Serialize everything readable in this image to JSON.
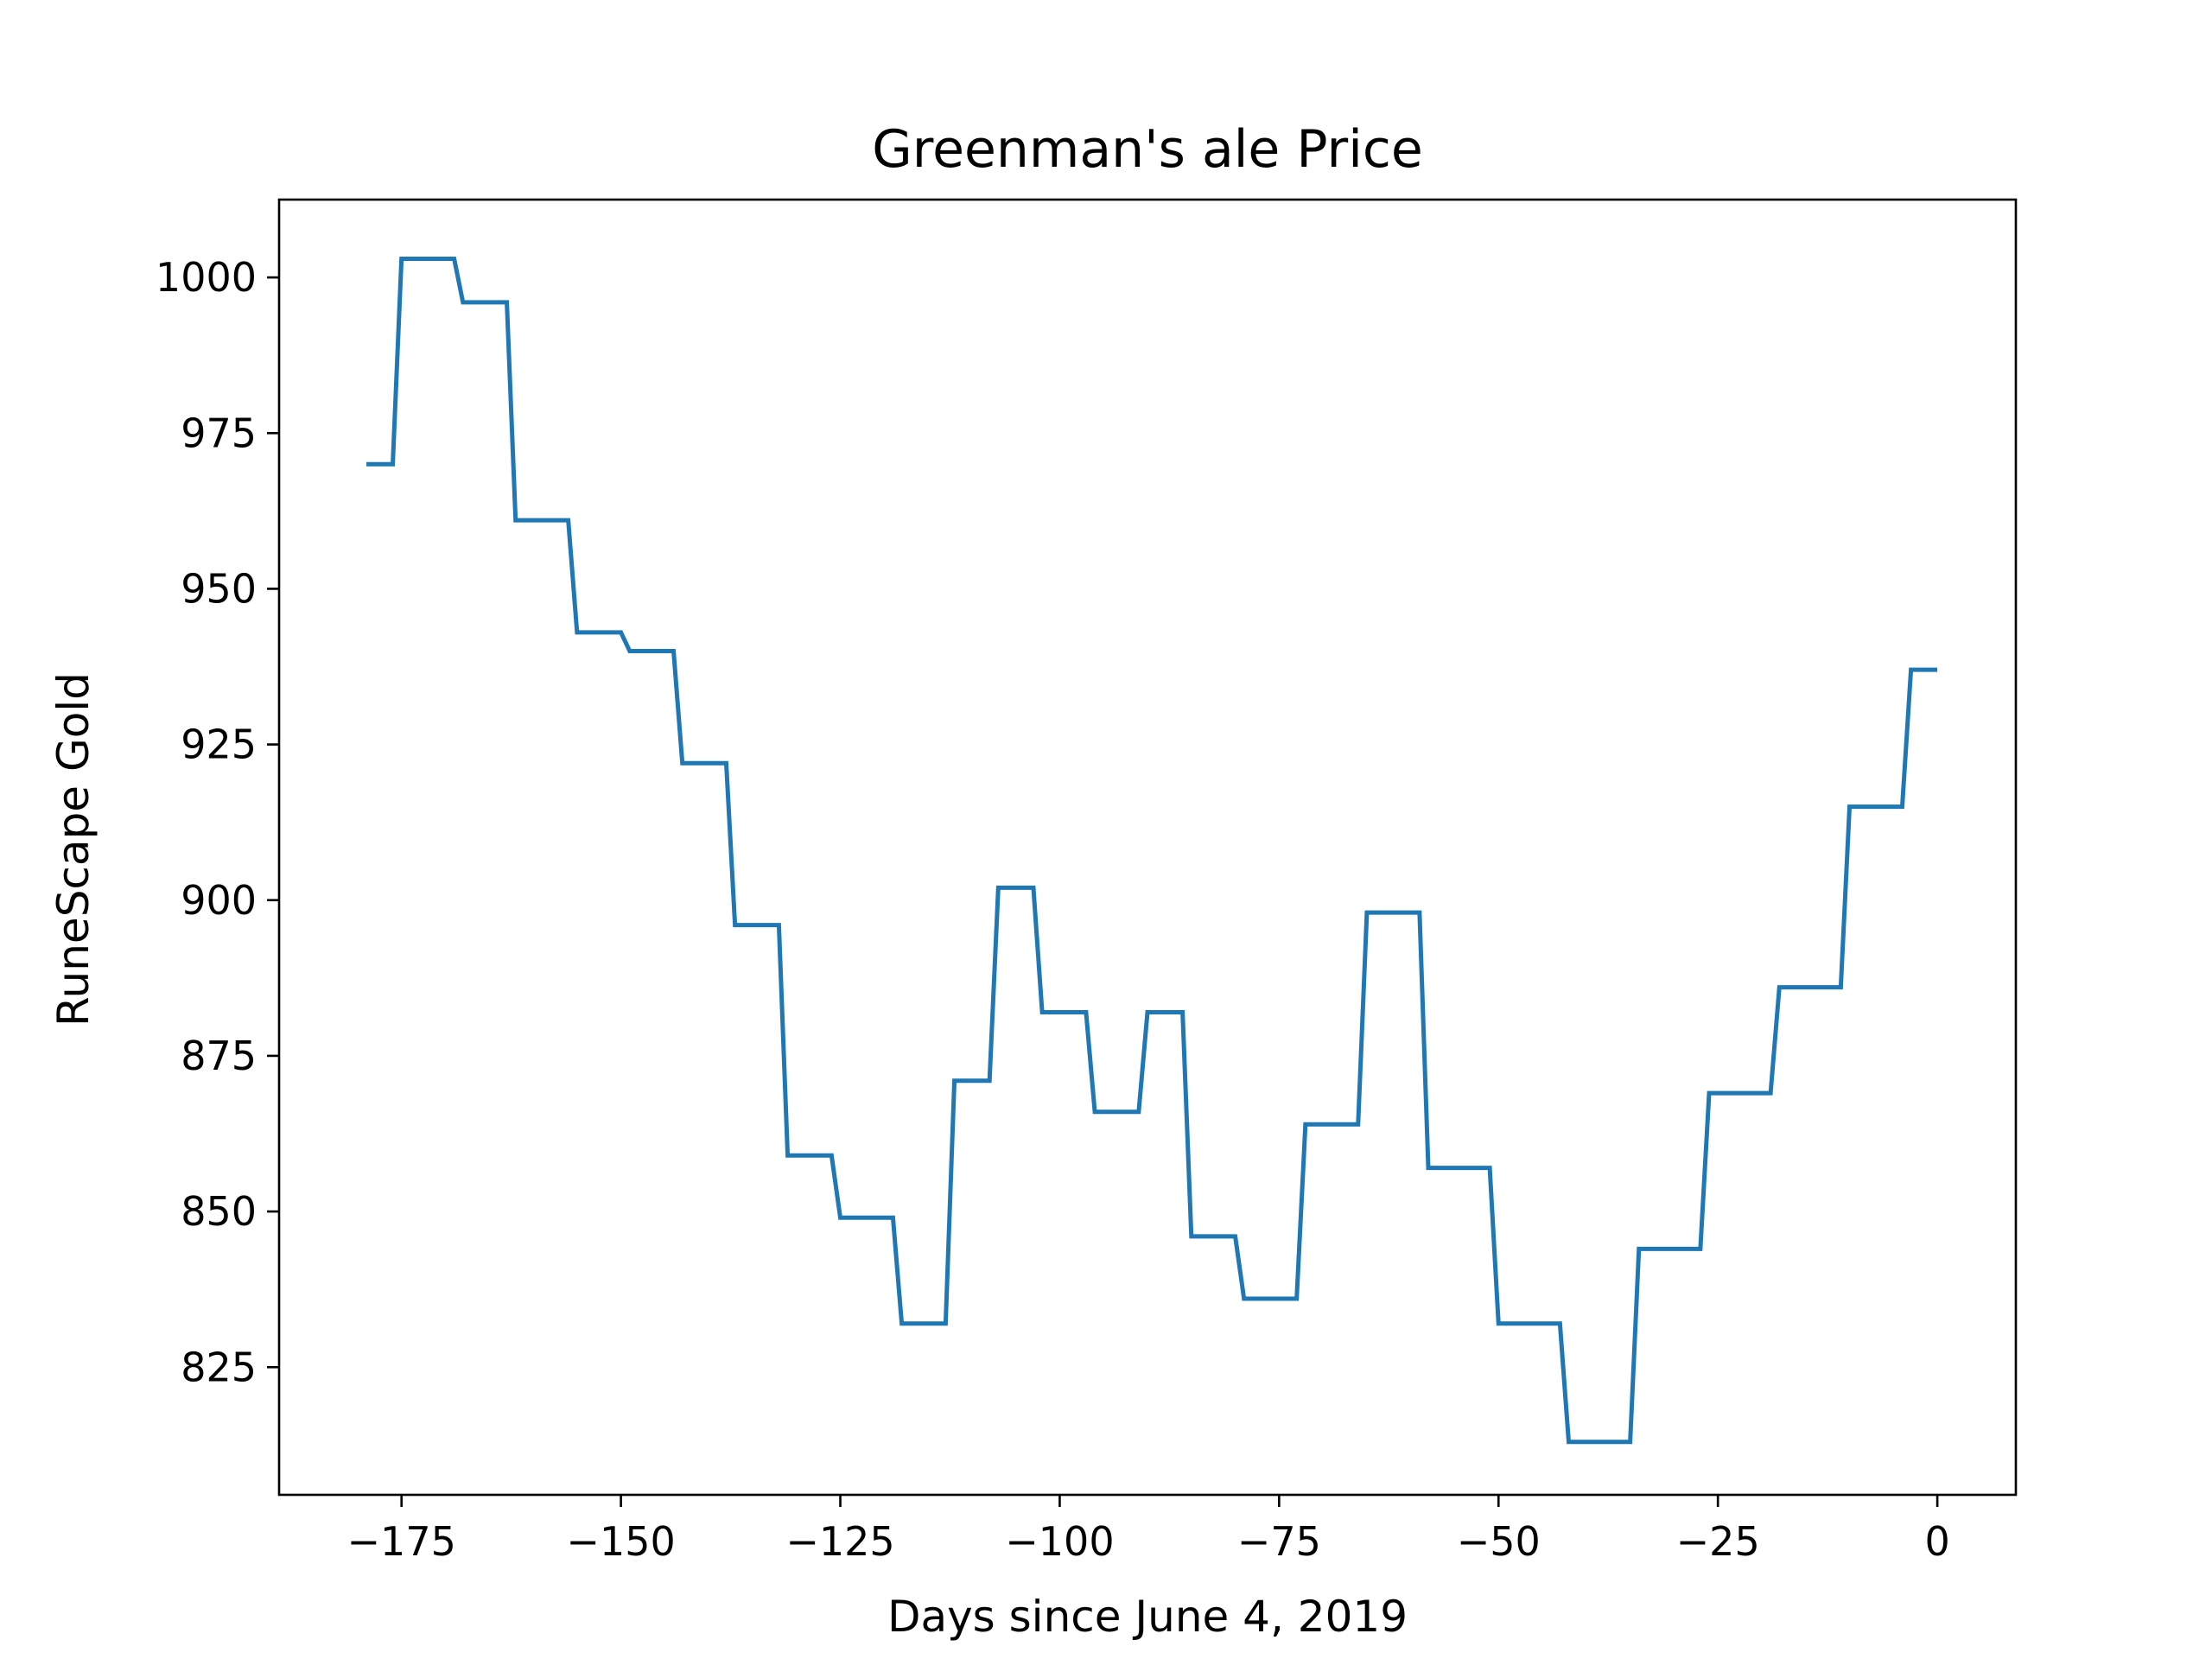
{
  "chart_data": {
    "type": "line",
    "title": "Greenman's ale Price",
    "xlabel": "Days since June 4, 2019",
    "ylabel": "RuneScape Gold",
    "xlim": [
      -188.95,
      8.95
    ],
    "ylim": [
      804.5,
      1012.5
    ],
    "xticks": [
      -175,
      -150,
      -125,
      -100,
      -75,
      -50,
      -25,
      0
    ],
    "xtick_labels": [
      "−175",
      "−150",
      "−125",
      "−100",
      "−75",
      "−50",
      "−25",
      "0"
    ],
    "yticks": [
      825,
      850,
      875,
      900,
      925,
      950,
      975,
      1000
    ],
    "ytick_labels": [
      "825",
      "850",
      "875",
      "900",
      "925",
      "950",
      "975",
      "1000"
    ],
    "grid": false,
    "legend": "none",
    "series": [
      {
        "color": "#1f77b4",
        "x": [
          -179,
          -176,
          -175,
          -169,
          -168,
          -163,
          -162,
          -156,
          -155,
          -150,
          -149,
          -144,
          -143,
          -138,
          -137,
          -132,
          -131,
          -126,
          -125,
          -119,
          -118,
          -113,
          -112,
          -108,
          -107,
          -103,
          -102,
          -97,
          -96,
          -91,
          -90,
          -86,
          -85,
          -80,
          -79,
          -73,
          -72,
          -66,
          -65,
          -59,
          -58,
          -51,
          -50,
          -43,
          -42,
          -35,
          -34,
          -27,
          -26,
          -19,
          -18,
          -11,
          -10,
          -4,
          -3,
          0
        ],
        "y": [
          970,
          970,
          1003,
          1003,
          996,
          996,
          961,
          961,
          943,
          943,
          940,
          940,
          922,
          922,
          896,
          896,
          859,
          859,
          849,
          849,
          832,
          832,
          871,
          871,
          902,
          902,
          882,
          882,
          866,
          866,
          882,
          882,
          846,
          846,
          836,
          836,
          864,
          864,
          898,
          898,
          857,
          857,
          832,
          832,
          813,
          813,
          844,
          844,
          869,
          869,
          886,
          886,
          915,
          915,
          937,
          937
        ]
      }
    ]
  }
}
